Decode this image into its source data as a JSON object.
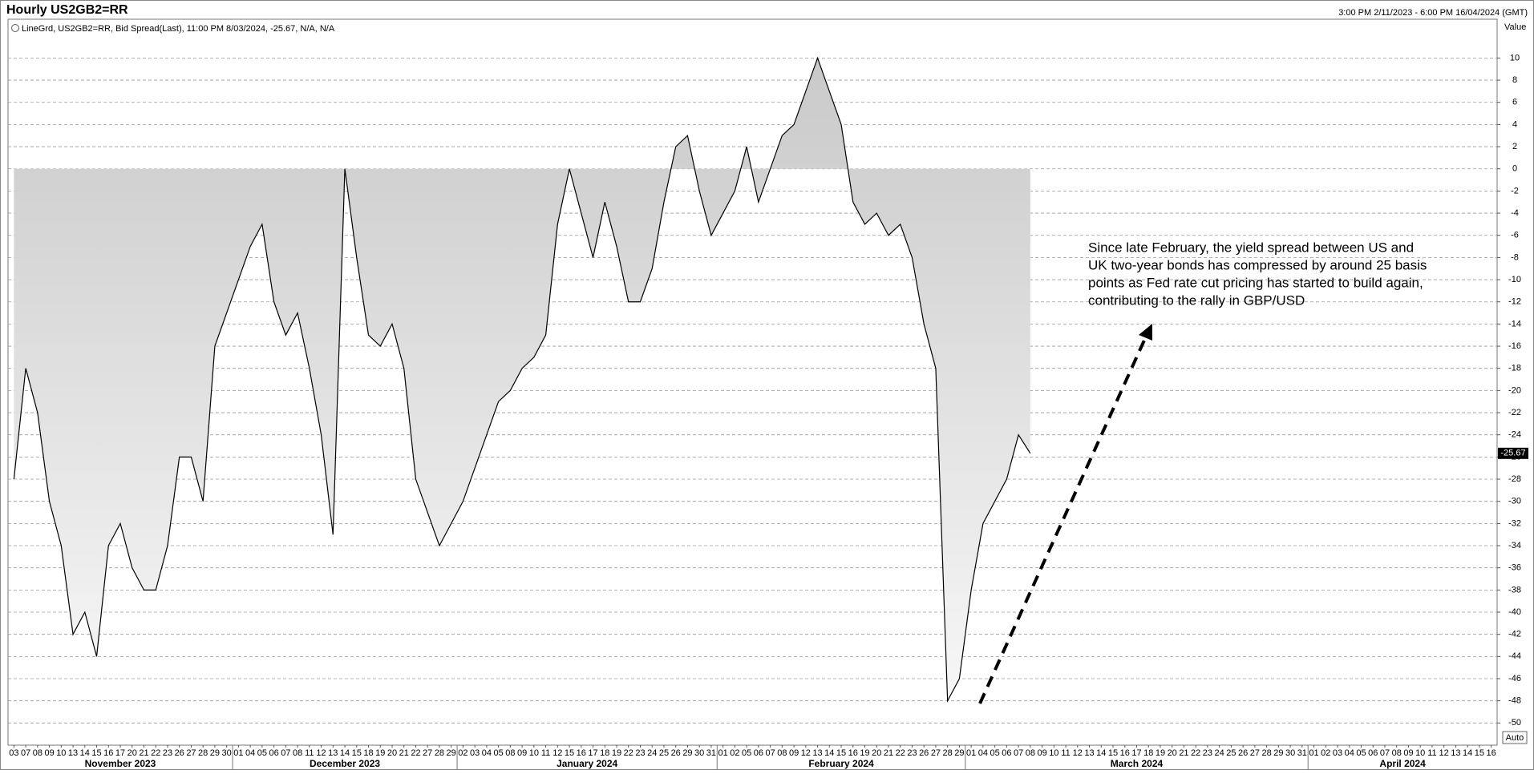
{
  "chart_data": {
    "type": "line",
    "title": "Hourly US2GB2=RR",
    "date_range": "3:00 PM 2/11/2023 - 6:00 PM 16/04/2024 (GMT)",
    "legend_text": "LineGrd, US2GB2=RR, Bid Spread(Last), 11:00 PM 8/03/2024, -25.67, N/A, N/A",
    "y_axis_title": "Value",
    "scale_button": "Auto",
    "annotation": [
      "Since late February, the yield spread between US and",
      "UK two-year bonds has compressed by around 25 basis",
      "points as Fed rate cut pricing has started to build again,",
      "contributing to the rally in GBP/USD"
    ],
    "months": [
      "November 2023",
      "December 2023",
      "January 2024",
      "February 2024",
      "March 2024",
      "April 2024"
    ],
    "categories": [
      "03",
      "07",
      "08",
      "09",
      "10",
      "13",
      "14",
      "15",
      "16",
      "17",
      "20",
      "21",
      "22",
      "23",
      "26",
      "27",
      "28",
      "29",
      "30",
      "01",
      "04",
      "05",
      "06",
      "07",
      "08",
      "11",
      "12",
      "13",
      "14",
      "15",
      "18",
      "19",
      "20",
      "21",
      "22",
      "27",
      "28",
      "29",
      "02",
      "03",
      "04",
      "05",
      "08",
      "09",
      "10",
      "11",
      "12",
      "15",
      "16",
      "17",
      "18",
      "19",
      "22",
      "23",
      "24",
      "25",
      "26",
      "29",
      "30",
      "31",
      "01",
      "02",
      "05",
      "06",
      "07",
      "08",
      "09",
      "12",
      "13",
      "14",
      "15",
      "16",
      "19",
      "20",
      "21",
      "22",
      "23",
      "26",
      "27",
      "28",
      "29",
      "01",
      "04",
      "05",
      "06",
      "07",
      "08",
      "09",
      "10",
      "11",
      "12",
      "13",
      "14",
      "15",
      "16",
      "17",
      "18",
      "19",
      "20",
      "21",
      "22",
      "23",
      "24",
      "25",
      "26",
      "27",
      "28",
      "29",
      "30",
      "31",
      "01",
      "02",
      "03",
      "04",
      "05",
      "06",
      "07",
      "08",
      "09",
      "10",
      "11",
      "12",
      "13",
      "14",
      "15",
      "16"
    ],
    "series": [
      {
        "name": "US2GB2=RR",
        "color": "#000000",
        "values": [
          -28,
          -18,
          -22,
          -30,
          -34,
          -42,
          -40,
          -44,
          -34,
          -32,
          -36,
          -38,
          -38,
          -34,
          -26,
          -26,
          -30,
          -16,
          -13,
          -10,
          -7,
          -5,
          -12,
          -15,
          -13,
          -18,
          -24,
          -33,
          0,
          -8,
          -15,
          -16,
          -14,
          -18,
          -28,
          -31,
          -34,
          -32,
          -30,
          -27,
          -24,
          -21,
          -20,
          -18,
          -17,
          -15,
          -5,
          0,
          -4,
          -8,
          -3,
          -7,
          -12,
          -12,
          -9,
          -3,
          2,
          3,
          -2,
          -6,
          -4,
          -2,
          2,
          -3,
          0,
          3,
          4,
          7,
          10,
          7,
          4,
          -3,
          -5,
          -4,
          -6,
          -5,
          -8,
          -14,
          -18,
          -48,
          -46,
          -38,
          -32,
          -30,
          -28,
          -24,
          -25.67,
          null,
          null,
          null,
          null,
          null,
          null,
          null,
          null,
          null,
          null,
          null,
          null,
          null,
          null,
          null,
          null,
          null,
          null,
          null,
          null,
          null,
          null,
          null,
          null,
          null,
          null,
          null,
          null,
          null,
          null,
          null,
          null,
          null,
          null,
          null,
          null,
          null,
          null,
          null
        ]
      }
    ],
    "ylim": [
      -52,
      13.5
    ],
    "yticks": [
      -50,
      -48,
      -46,
      -44,
      -42,
      -40,
      -38,
      -36,
      -34,
      -32,
      -30,
      -28,
      -26,
      -24,
      -22,
      -20,
      -18,
      -16,
      -14,
      -12,
      -10,
      -8,
      -6,
      -4,
      -2,
      0,
      2,
      4,
      6,
      8,
      10
    ],
    "grid": true
  }
}
